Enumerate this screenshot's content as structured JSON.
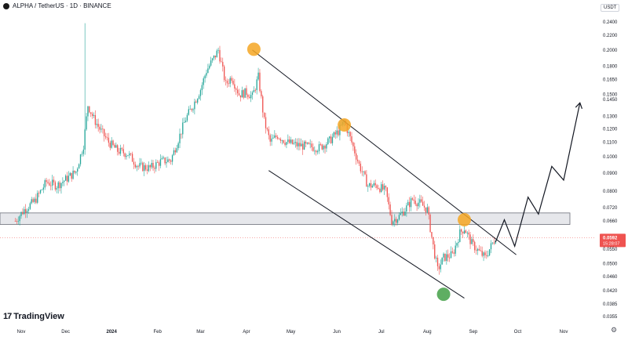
{
  "header": {
    "pair_title": "ALPHA / TetherUS · 1D · BINANCE",
    "currency": "USDT"
  },
  "logo": {
    "mark": "17",
    "text": "TradingView"
  },
  "colors": {
    "up": "#26a69a",
    "down": "#ef5350",
    "marker_orange": "#f5a623",
    "marker_green": "#43a047",
    "zone_fill": "#e6e7eb",
    "channel_line": "#131722",
    "price_label_bg": "#ef5350"
  },
  "price_label": {
    "value": "0.0592",
    "countdown": "15:28:07"
  },
  "chart_data": {
    "type": "candlestick",
    "y_scale": "log",
    "y_ticks": [
      0.24,
      0.22,
      0.2,
      0.18,
      0.165,
      0.15,
      0.145,
      0.13,
      0.12,
      0.11,
      0.1,
      0.09,
      0.08,
      0.072,
      0.066,
      0.055,
      0.05,
      0.046,
      0.042,
      0.0385,
      0.0355
    ],
    "y_tick_labels": [
      "0.2400",
      "0.2200",
      "0.2000",
      "0.1800",
      "0.1650",
      "0.1500",
      "0.1450",
      "0.1300",
      "0.1200",
      "0.1100",
      "0.1000",
      "0.0900",
      "0.0800",
      "0.0720",
      "0.0660",
      "0.0550",
      "0.0500",
      "0.0460",
      "0.0420",
      "0.0385",
      "0.0355"
    ],
    "x_labels": [
      "Nov",
      "Dec",
      "2024",
      "Feb",
      "Mar",
      "Apr",
      "May",
      "Jun",
      "Jul",
      "Aug",
      "Sep",
      "Oct",
      "Nov"
    ],
    "x_label_dates": [
      "2023-11-01",
      "2023-12-01",
      "2024-01-01",
      "2024-02-01",
      "2024-03-01",
      "2024-04-01",
      "2024-05-01",
      "2024-06-01",
      "2024-07-01",
      "2024-08-01",
      "2024-09-01",
      "2024-10-01",
      "2024-11-01"
    ],
    "price_path": [
      [
        "2023-10-28",
        0.066
      ],
      [
        "2023-11-03",
        0.071
      ],
      [
        "2023-11-10",
        0.075
      ],
      [
        "2023-11-18",
        0.085
      ],
      [
        "2023-11-25",
        0.083
      ],
      [
        "2023-12-02",
        0.087
      ],
      [
        "2023-12-08",
        0.091
      ],
      [
        "2023-12-13",
        0.108
      ],
      [
        "2023-12-16",
        0.14
      ],
      [
        "2023-12-20",
        0.128
      ],
      [
        "2023-12-25",
        0.118
      ],
      [
        "2023-12-30",
        0.11
      ],
      [
        "2024-01-05",
        0.104
      ],
      [
        "2024-01-12",
        0.102
      ],
      [
        "2024-01-19",
        0.094
      ],
      [
        "2024-01-27",
        0.093
      ],
      [
        "2024-02-03",
        0.097
      ],
      [
        "2024-02-10",
        0.098
      ],
      [
        "2024-02-15",
        0.112
      ],
      [
        "2024-02-20",
        0.128
      ],
      [
        "2024-02-25",
        0.14
      ],
      [
        "2024-03-01",
        0.155
      ],
      [
        "2024-03-05",
        0.175
      ],
      [
        "2024-03-10",
        0.19
      ],
      [
        "2024-03-13",
        0.2
      ],
      [
        "2024-03-18",
        0.16
      ],
      [
        "2024-03-22",
        0.168
      ],
      [
        "2024-03-27",
        0.15
      ],
      [
        "2024-04-01",
        0.152
      ],
      [
        "2024-04-05",
        0.148
      ],
      [
        "2024-04-09",
        0.168
      ],
      [
        "2024-04-13",
        0.126
      ],
      [
        "2024-04-17",
        0.11
      ],
      [
        "2024-04-22",
        0.115
      ],
      [
        "2024-04-28",
        0.11
      ],
      [
        "2024-05-05",
        0.108
      ],
      [
        "2024-05-12",
        0.107
      ],
      [
        "2024-05-20",
        0.106
      ],
      [
        "2024-05-27",
        0.111
      ],
      [
        "2024-06-02",
        0.118
      ],
      [
        "2024-06-06",
        0.126
      ],
      [
        "2024-06-10",
        0.113
      ],
      [
        "2024-06-16",
        0.095
      ],
      [
        "2024-06-22",
        0.083
      ],
      [
        "2024-06-28",
        0.083
      ],
      [
        "2024-07-04",
        0.08
      ],
      [
        "2024-07-08",
        0.066
      ],
      [
        "2024-07-13",
        0.068
      ],
      [
        "2024-07-18",
        0.072
      ],
      [
        "2024-07-22",
        0.076
      ],
      [
        "2024-07-27",
        0.074
      ],
      [
        "2024-08-01",
        0.071
      ],
      [
        "2024-08-05",
        0.056
      ],
      [
        "2024-08-08",
        0.048
      ],
      [
        "2024-08-12",
        0.052
      ],
      [
        "2024-08-18",
        0.053
      ],
      [
        "2024-08-23",
        0.061
      ],
      [
        "2024-08-26",
        0.063
      ],
      [
        "2024-08-31",
        0.057
      ],
      [
        "2024-09-05",
        0.054
      ],
      [
        "2024-09-09",
        0.052
      ],
      [
        "2024-09-13",
        0.056
      ],
      [
        "2024-09-16",
        0.0592
      ]
    ],
    "horizontal_zone": {
      "low": 0.0645,
      "high": 0.0695
    },
    "channel_upper": [
      [
        "2024-04-05",
        0.2
      ],
      [
        "2024-09-30",
        0.053
      ]
    ],
    "channel_lower": [
      [
        "2024-04-16",
        0.0915
      ],
      [
        "2024-08-26",
        0.04
      ]
    ],
    "projection_path": [
      [
        "2024-09-16",
        0.0575
      ],
      [
        "2024-09-22",
        0.0665
      ],
      [
        "2024-09-29",
        0.056
      ],
      [
        "2024-10-08",
        0.077
      ],
      [
        "2024-10-15",
        0.069
      ],
      [
        "2024-10-24",
        0.094
      ],
      [
        "2024-11-01",
        0.086
      ],
      [
        "2024-11-12",
        0.142
      ]
    ],
    "markers": [
      {
        "date": "2024-04-06",
        "value": 0.201,
        "color": "orange"
      },
      {
        "date": "2024-06-06",
        "value": 0.123,
        "color": "orange"
      },
      {
        "date": "2024-08-26",
        "value": 0.0665,
        "color": "orange"
      },
      {
        "date": "2024-08-12",
        "value": 0.041,
        "color": "green"
      }
    ],
    "current_price": 0.0592,
    "grid": false
  }
}
